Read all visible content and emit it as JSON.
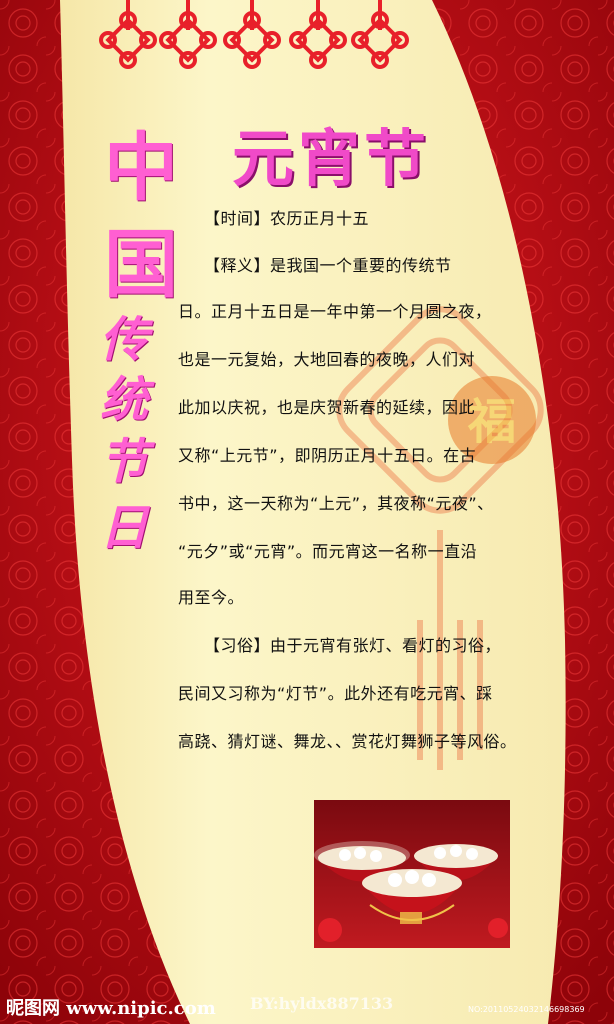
{
  "poster": {
    "title": "元宵节",
    "vertical_china": [
      "中",
      "国"
    ],
    "vertical_script": [
      "传",
      "统",
      "节",
      "日"
    ],
    "body_lines": [
      "【时间】农历正月十五",
      "【释义】是我国一个重要的传统节",
      "日。正月十五日是一年中第一个月圆之夜，",
      "也是一元复始，大地回春的夜晚，人们对",
      "此加以庆祝，也是庆贺新春的延续，因此",
      "又称“上元节”，即阴历正月十五日。在古",
      "书中，这一天称为“上元”，其夜称“元夜”、",
      "“元夕”或“元宵”。而元宵这一名称一直沿",
      "用至今。",
      "【习俗】由于元宵有张灯、看灯的习俗，",
      "民间又习称为“灯节”。此外还有吃元宵、踩",
      "高跷、猜灯谜、舞龙、、赏花灯舞狮子等风俗。"
    ]
  },
  "watermark": {
    "site": "昵图网 www.nipic.com",
    "author": "BY:hyldx887133",
    "id": "NO:20110524032146698369"
  },
  "colors": {
    "curtain_red": "#c40c14",
    "panel_cream": "#fbf3c0",
    "title_pink": "#f04ac8",
    "knot_red": "#e8202a"
  }
}
